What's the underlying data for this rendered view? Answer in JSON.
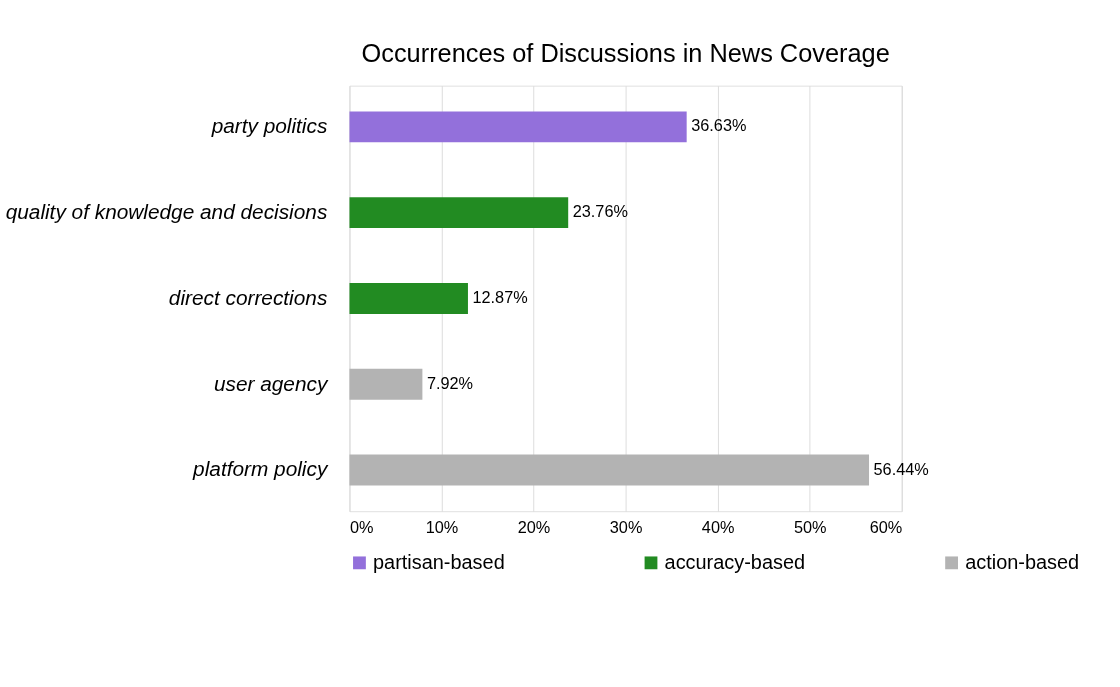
{
  "chart_data": {
    "type": "bar",
    "orientation": "horizontal",
    "title": "Occurrences of Discussions in News Coverage",
    "categories": [
      "party politics",
      "quality of knowledge and decisions",
      "direct corrections",
      "user agency",
      "platform policy"
    ],
    "series": [
      {
        "name": "partisan-based",
        "color": "#9370db",
        "values": [
          36.63,
          null,
          null,
          null,
          null
        ],
        "value_labels": [
          "36.63%",
          null,
          null,
          null,
          null
        ]
      },
      {
        "name": "accuracy-based",
        "color": "#228b22",
        "values": [
          null,
          23.76,
          12.87,
          null,
          null
        ],
        "value_labels": [
          null,
          "23.76%",
          "12.87%",
          null,
          null
        ]
      },
      {
        "name": "action-based",
        "color": "#b3b3b3",
        "values": [
          null,
          null,
          null,
          7.92,
          56.44
        ],
        "value_labels": [
          null,
          null,
          null,
          "7.92%",
          "56.44%"
        ]
      }
    ],
    "xlim": [
      0,
      60
    ],
    "xticks": [
      {
        "value": 0,
        "label": "0%"
      },
      {
        "value": 10,
        "label": "10%"
      },
      {
        "value": 20,
        "label": "20%"
      },
      {
        "value": 30,
        "label": "30%"
      },
      {
        "value": 40,
        "label": "40%"
      },
      {
        "value": 50,
        "label": "50%"
      },
      {
        "value": 60,
        "label": "60%"
      }
    ],
    "grid": "x",
    "legend": "bottom"
  }
}
